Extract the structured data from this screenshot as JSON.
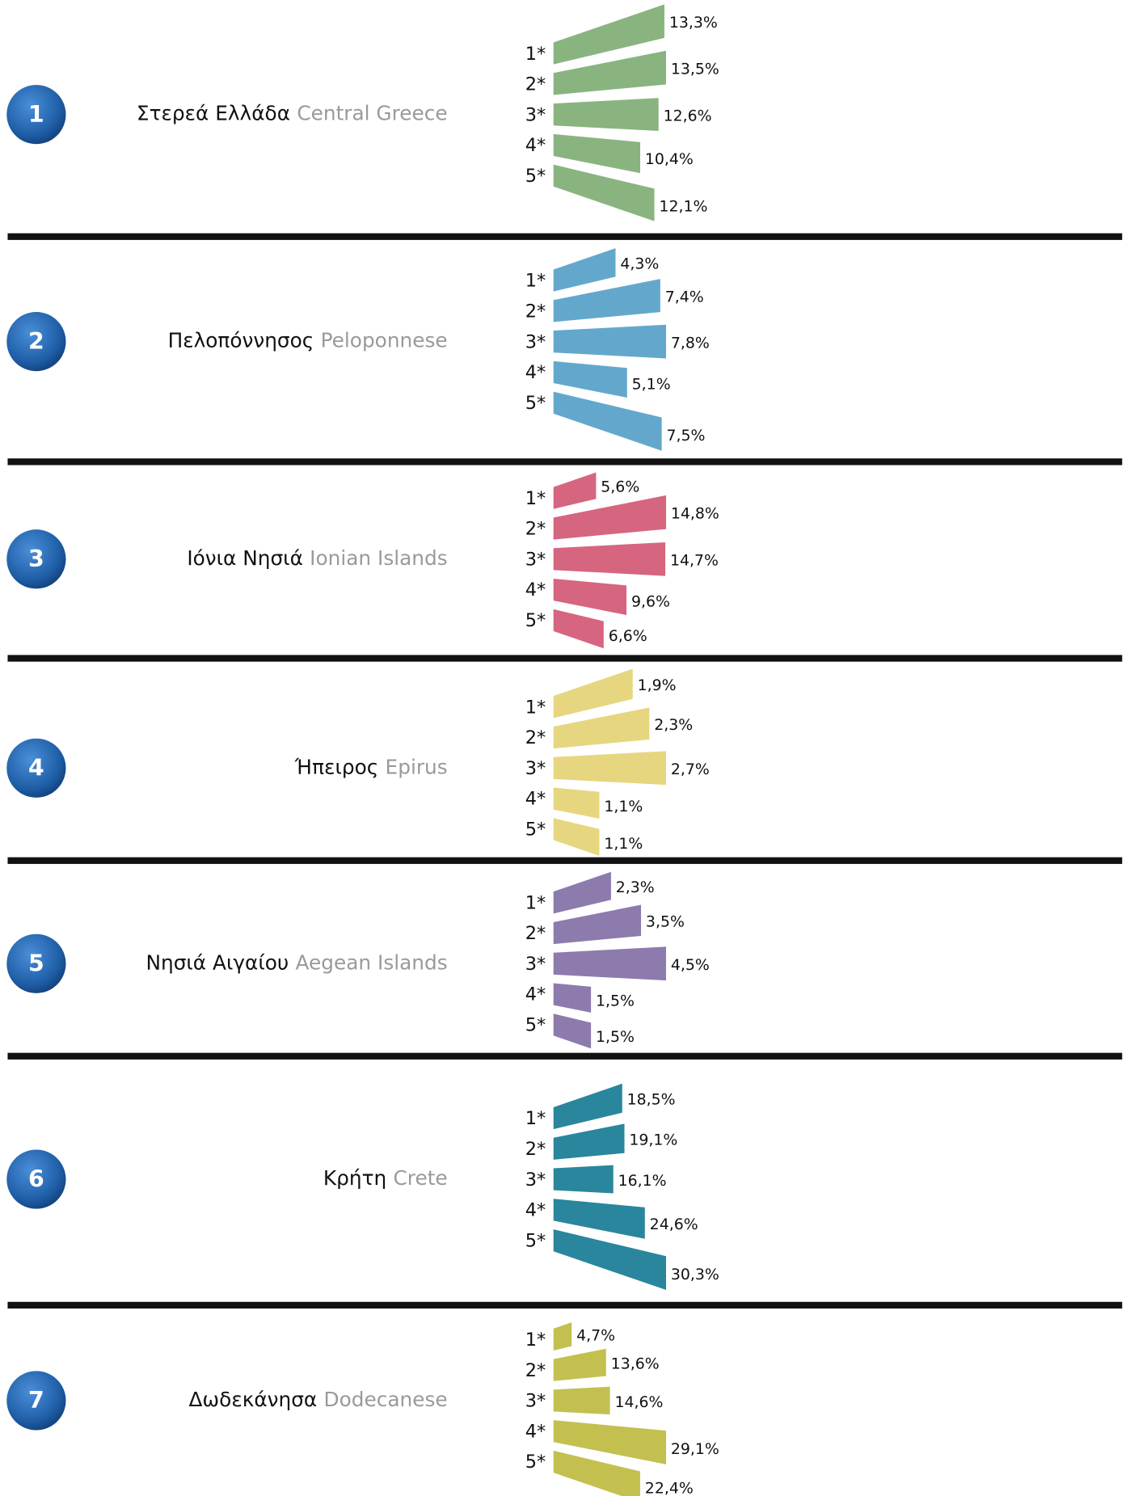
{
  "chart_data": [
    {
      "type": "fan",
      "label": "1",
      "title": "Στερεά Ελλάδα",
      "subtitle": "Central Greece",
      "color": "#8ab47f",
      "categories": [
        "1*",
        "2*",
        "3*",
        "4*",
        "5*"
      ],
      "values": [
        13.3,
        13.5,
        12.6,
        10.4,
        12.1
      ],
      "value_labels": [
        "13,3%",
        "13,5%",
        "12,6%",
        "10,4%",
        "12,1%"
      ]
    },
    {
      "type": "fan",
      "label": "2",
      "title": "Πελοπόννησος",
      "subtitle": "Peloponnese",
      "color": "#63a8cc",
      "categories": [
        "1*",
        "2*",
        "3*",
        "4*",
        "5*"
      ],
      "values": [
        4.3,
        7.4,
        7.8,
        5.1,
        7.5
      ],
      "value_labels": [
        "4,3%",
        "7,4%",
        "7,8%",
        "5,1%",
        "7,5%"
      ]
    },
    {
      "type": "fan",
      "label": "3",
      "title": "Ιόνια Νησιά",
      "subtitle": "Ionian Islands",
      "color": "#d6657f",
      "categories": [
        "1*",
        "2*",
        "3*",
        "4*",
        "5*"
      ],
      "values": [
        5.6,
        14.8,
        14.7,
        9.6,
        6.6
      ],
      "value_labels": [
        "5,6%",
        "14,8%",
        "14,7%",
        "9,6%",
        "6,6%"
      ]
    },
    {
      "type": "fan",
      "label": "4",
      "title": "Ήπειρος",
      "subtitle": "Epirus",
      "color": "#e6d67f",
      "categories": [
        "1*",
        "2*",
        "3*",
        "4*",
        "5*"
      ],
      "values": [
        1.9,
        2.3,
        2.7,
        1.1,
        1.1
      ],
      "value_labels": [
        "1,9%",
        "2,3%",
        "2,7%",
        "1,1%",
        "1,1%"
      ]
    },
    {
      "type": "fan",
      "label": "5",
      "title": "Νησιά Αιγαίου",
      "subtitle": "Aegean Islands",
      "color": "#8d7bae",
      "categories": [
        "1*",
        "2*",
        "3*",
        "4*",
        "5*"
      ],
      "values": [
        2.3,
        3.5,
        4.5,
        1.5,
        1.5
      ],
      "value_labels": [
        "2,3%",
        "3,5%",
        "4,5%",
        "1,5%",
        "1,5%"
      ]
    },
    {
      "type": "fan",
      "label": "6",
      "title": "Κρήτη",
      "subtitle": "Crete",
      "color": "#2a869c",
      "categories": [
        "1*",
        "2*",
        "3*",
        "4*",
        "5*"
      ],
      "values": [
        18.5,
        19.1,
        16.1,
        24.6,
        30.3
      ],
      "value_labels": [
        "18,5%",
        "19,1%",
        "16,1%",
        "24,6%",
        "30,3%"
      ]
    },
    {
      "type": "fan",
      "label": "7",
      "title": "Δωδεκάνησα",
      "subtitle": "Dodecanese",
      "color": "#c3c04f",
      "categories": [
        "1*",
        "2*",
        "3*",
        "4*",
        "5*"
      ],
      "values": [
        4.7,
        13.6,
        14.6,
        29.1,
        22.4
      ],
      "value_labels": [
        "4,7%",
        "13,6%",
        "14,6%",
        "29,1%",
        "22,4%"
      ]
    }
  ]
}
